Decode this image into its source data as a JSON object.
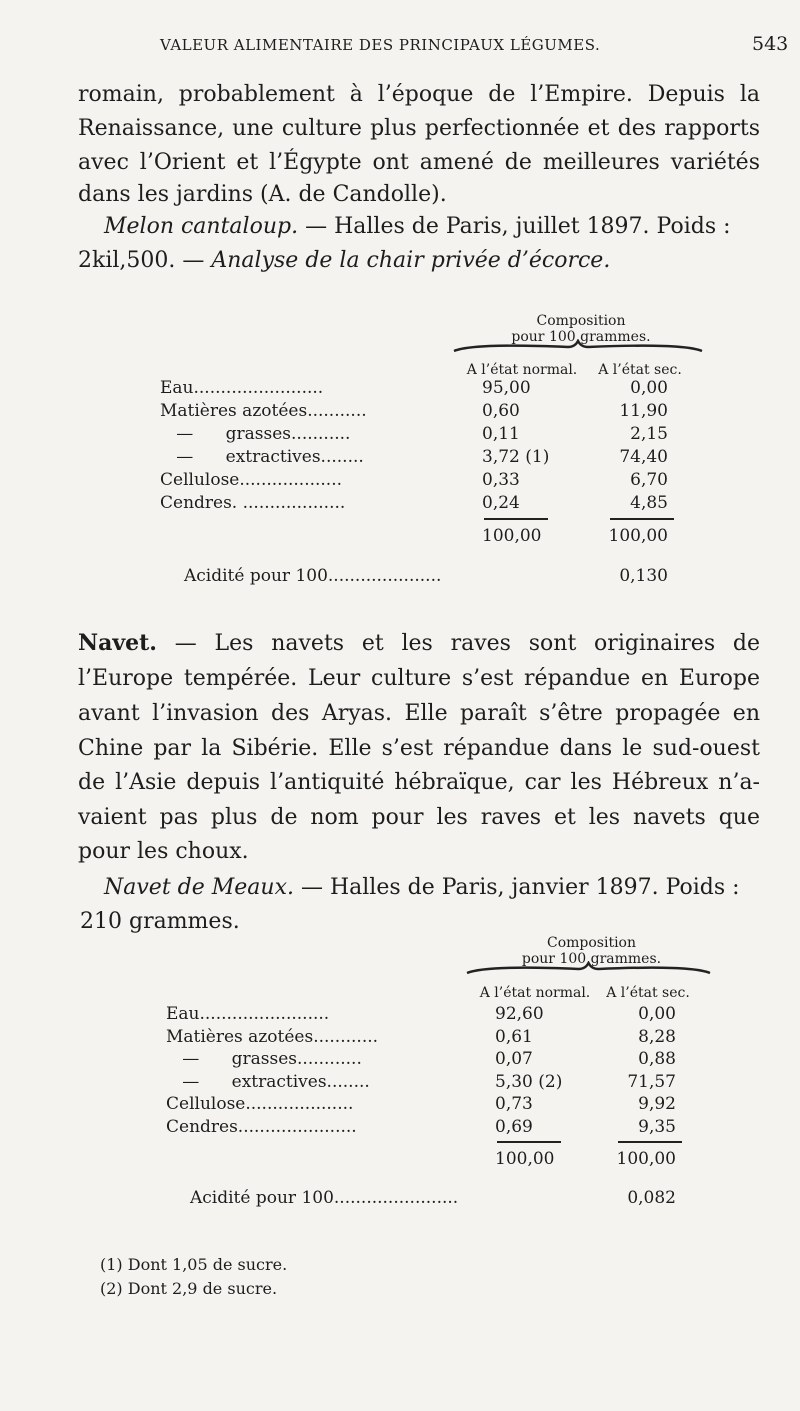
{
  "header": {
    "running_title": "VALEUR ALIMENTAIRE DES PRINCIPAUX LÉGUMES.",
    "page_number": "543"
  },
  "intro_lines": [
    "romain, probablement à l’époque de l’Empire. Depuis la",
    "Renaissance, une culture plus perfectionnée et des rapports",
    "avec l’Orient et l’Égypte ont amené de meilleures variétés",
    "dans les jardins (A. de Candolle)."
  ],
  "melon": {
    "name": "Melon cantaloup.",
    "source": " — Halles de Paris, juillet 1897. Poids :",
    "weight": "2kil,500. — ",
    "analysis": "Analyse de la chair privée d’écorce."
  },
  "table1": {
    "caption1": "Composition",
    "caption2": "pour 100 grammes.",
    "col1": "A l’état normal.",
    "col2": "A l’état sec.",
    "rows": [
      {
        "label": "Eau........................",
        "normal": "95,00",
        "sec": "0,00"
      },
      {
        "label": "Matières azotées...........",
        "normal": "0,60",
        "sec": "11,90"
      },
      {
        "label": "   —      grasses...........",
        "normal": "0,11",
        "sec": "2,15"
      },
      {
        "label": "   —      extractives........",
        "normal": "3,72 (1)",
        "sec": "74,40"
      },
      {
        "label": "Cellulose...................",
        "normal": "0,33",
        "sec": "6,70"
      },
      {
        "label": "Cendres. ...................",
        "normal": "0,24",
        "sec": "4,85"
      }
    ],
    "total_normal": "100,00",
    "total_sec": "100,00",
    "acidity_label": "Acidité pour 100.....................",
    "acidity_value": "0,130"
  },
  "navet": {
    "title": "Navet.",
    "lines": [
      " — Les navets et les raves sont originaires de",
      "l’Europe tempérée. Leur culture s’est répandue en Europe",
      "avant l’invasion des Aryas. Elle paraît s’être propagée en",
      "Chine par la Sibérie. Elle s’est répandue dans le sud-ouest",
      "de l’Asie depuis l’antiquité hébraïque, car les Hébreux n’a-",
      "vaient pas plus de nom pour les raves et les navets que",
      "pour les choux."
    ],
    "variety": "Navet de Meaux.",
    "source": " — Halles de Paris, janvier 1897. Poids :",
    "weight": "210 grammes."
  },
  "table2": {
    "caption1": "Composition",
    "caption2": "pour 100 grammes.",
    "col1": "A l’état normal.",
    "col2": "A l’état sec.",
    "rows": [
      {
        "label": "Eau........................",
        "normal": "92,60",
        "sec": "0,00"
      },
      {
        "label": "Matières azotées............",
        "normal": "0,61",
        "sec": "8,28"
      },
      {
        "label": "   —      grasses............",
        "normal": "0,07",
        "sec": "0,88"
      },
      {
        "label": "   —      extractives........",
        "normal": "5,30 (2)",
        "sec": "71,57"
      },
      {
        "label": "Cellulose....................",
        "normal": "0,73",
        "sec": "9,92"
      },
      {
        "label": "Cendres......................",
        "normal": "0,69",
        "sec": "9,35"
      }
    ],
    "total_normal": "100,00",
    "total_sec": "100,00",
    "acidity_label": "Acidité pour 100.......................",
    "acidity_value": "0,082"
  },
  "footnotes": [
    "(1) Dont 1,05 de sucre.",
    "(2) Dont 2,9 de sucre."
  ]
}
